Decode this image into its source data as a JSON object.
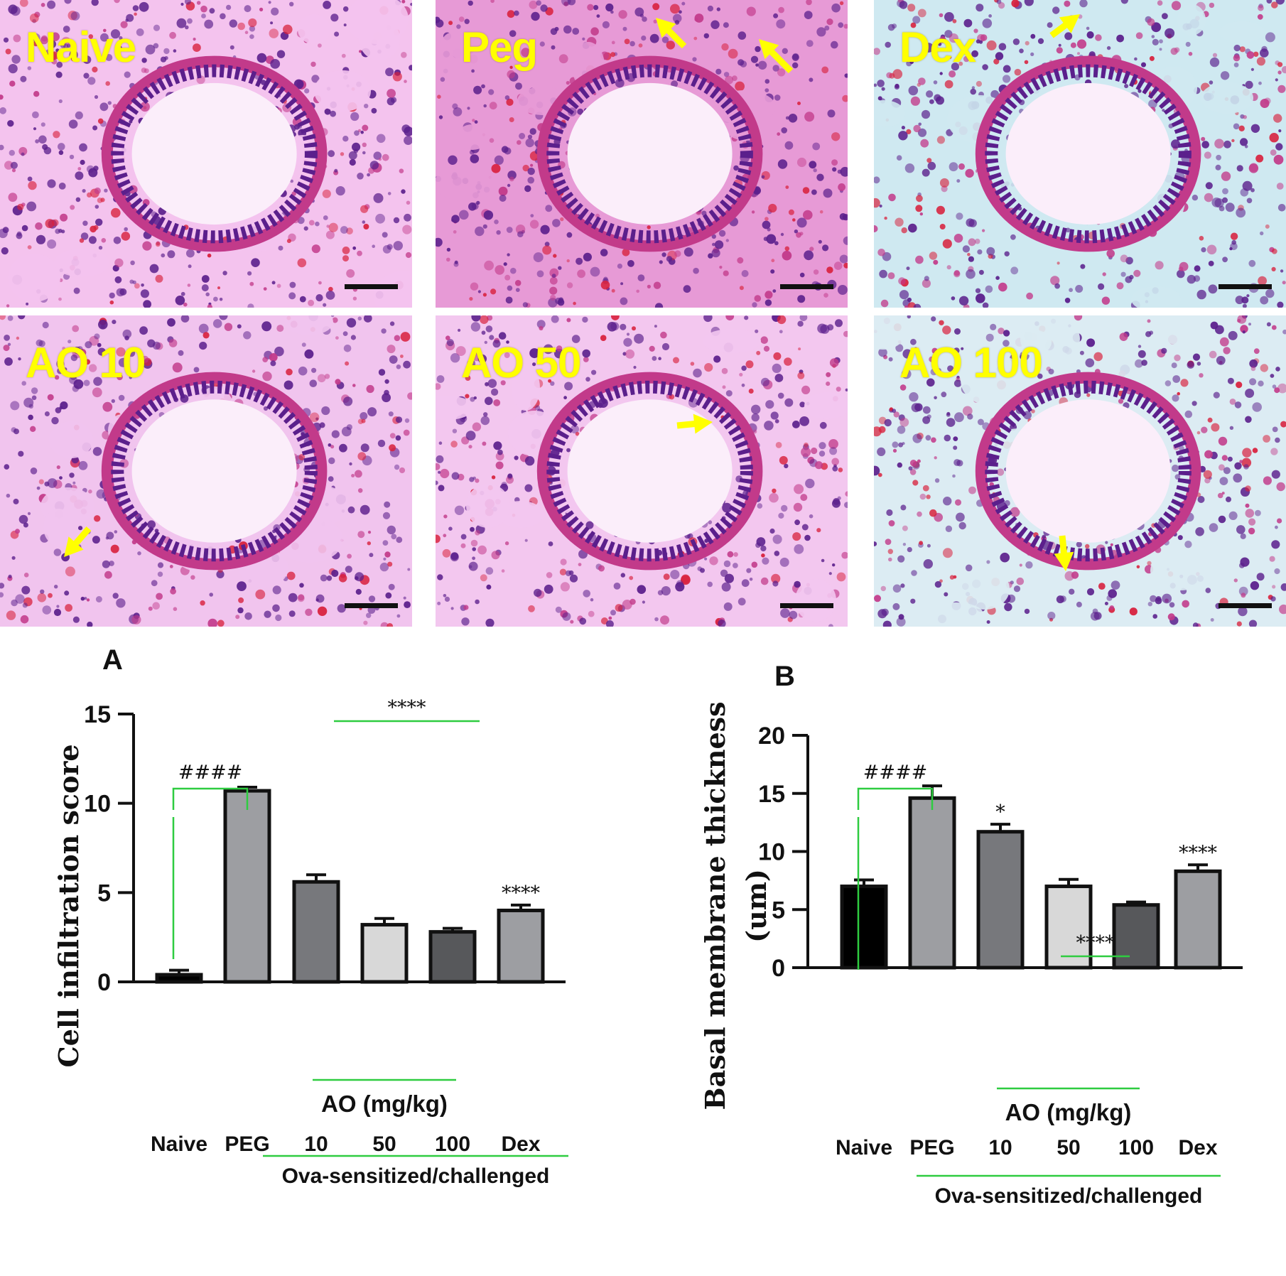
{
  "micrographs": [
    {
      "label": "Naive",
      "tint": "#f4c3ee",
      "arrows": []
    },
    {
      "label": "Peg",
      "tint": "#e79ad6",
      "arrows": [
        "inflammation-arrow",
        "inflammation-arrow"
      ]
    },
    {
      "label": "Dex",
      "tint": "#cfe9f1",
      "arrows": [
        "inflammation-arrow"
      ]
    },
    {
      "label": "AO 10",
      "tint": "#f1c4ee",
      "arrows": [
        "inflammation-arrow"
      ]
    },
    {
      "label": "AO 50",
      "tint": "#f3c7ef",
      "arrows": [
        "inflammation-arrow"
      ]
    },
    {
      "label": "AO 100",
      "tint": "#dcecf3",
      "arrows": [
        "inflammation-arrow"
      ]
    }
  ],
  "colors": {
    "arrow": "#ffff00",
    "bracket": "#2ecc40",
    "tissue": "#5b1f8c",
    "stroma": "#c23a8a",
    "rbc": "#d8203c"
  },
  "chart_data": [
    {
      "type": "bar",
      "panel_letter": "A",
      "ylabel": "Cell infiltration score",
      "ylim": [
        0,
        15
      ],
      "yticks": [
        0,
        5,
        10,
        15
      ],
      "categories": [
        "Naive",
        "PEG",
        "10",
        "50",
        "100",
        "Dex"
      ],
      "values": [
        0.4,
        10.7,
        5.6,
        3.2,
        2.8,
        4.0
      ],
      "errors": [
        0.25,
        0.2,
        0.4,
        0.35,
        0.2,
        0.3
      ],
      "bar_colors": [
        "#000000",
        "#9d9ea2",
        "#77787c",
        "#d8d8d8",
        "#57585b",
        "#9d9ea2"
      ],
      "group_label": "AO (mg/kg)",
      "outer_label": "Ova-sensitized/challenged",
      "bracket_label": "####",
      "group_sig": "****",
      "bar_sigs": [
        "",
        "",
        "",
        "",
        "",
        "****"
      ]
    },
    {
      "type": "bar",
      "panel_letter": "B",
      "ylabel": "Basal membrane thickness (um)",
      "ylabel_line1": "Basal membrane thickness",
      "ylabel_line2": "(um)",
      "ylim": [
        0,
        20
      ],
      "yticks": [
        0,
        5,
        10,
        15,
        20
      ],
      "categories": [
        "Naive",
        "PEG",
        "10",
        "50",
        "100",
        "Dex"
      ],
      "values": [
        7.0,
        14.6,
        11.7,
        7.0,
        5.4,
        8.3
      ],
      "errors": [
        0.55,
        1.05,
        0.65,
        0.6,
        0.25,
        0.55
      ],
      "bar_colors": [
        "#000000",
        "#9d9ea2",
        "#77787c",
        "#d8d8d8",
        "#57585b",
        "#9d9ea2"
      ],
      "group_label": "AO (mg/kg)",
      "outer_label": "Ova-sensitized/challenged",
      "bracket_label": "####",
      "group_sig": "****",
      "bar_sigs": [
        "",
        "",
        "*",
        "",
        "",
        "****"
      ]
    }
  ]
}
